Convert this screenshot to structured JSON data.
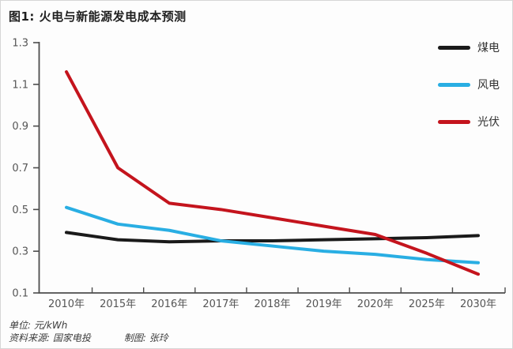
{
  "figure": {
    "title": "图1: 火电与新能源发电成本预测",
    "footer_unit": "单位: 元/kWh",
    "footer_source": "资料来源: 国家电投",
    "footer_author": "制图: 张玲"
  },
  "colors": {
    "coal": "#1a1a1a",
    "wind": "#29aee3",
    "solar": "#c4141d",
    "axis": "#4d4d4d",
    "tick_label": "#555555",
    "border": "#d6d6d6"
  },
  "chart_data": {
    "type": "line",
    "title": "图1: 火电与新能源发电成本预测",
    "unit": "元/kWh",
    "xlabel": "",
    "ylabel": "",
    "categories": [
      "2010年",
      "2015年",
      "2016年",
      "2017年",
      "2018年",
      "2019年",
      "2020年",
      "2025年",
      "2030年"
    ],
    "series": [
      {
        "name": "煤电",
        "color": "#1a1a1a",
        "values": [
          0.39,
          0.355,
          0.345,
          0.35,
          0.35,
          0.355,
          0.36,
          0.365,
          0.375
        ]
      },
      {
        "name": "风电",
        "color": "#29aee3",
        "values": [
          0.51,
          0.43,
          0.4,
          0.35,
          0.325,
          0.3,
          0.285,
          0.26,
          0.245
        ]
      },
      {
        "name": "光伏",
        "color": "#c4141d",
        "values": [
          1.16,
          0.7,
          0.53,
          0.5,
          0.46,
          0.42,
          0.38,
          0.29,
          0.19
        ]
      }
    ],
    "ylim": [
      0.1,
      1.3
    ],
    "yticks": [
      0.1,
      0.3,
      0.5,
      0.7,
      0.9,
      1.1,
      1.3
    ],
    "grid": false,
    "legend_position": "top-right"
  }
}
